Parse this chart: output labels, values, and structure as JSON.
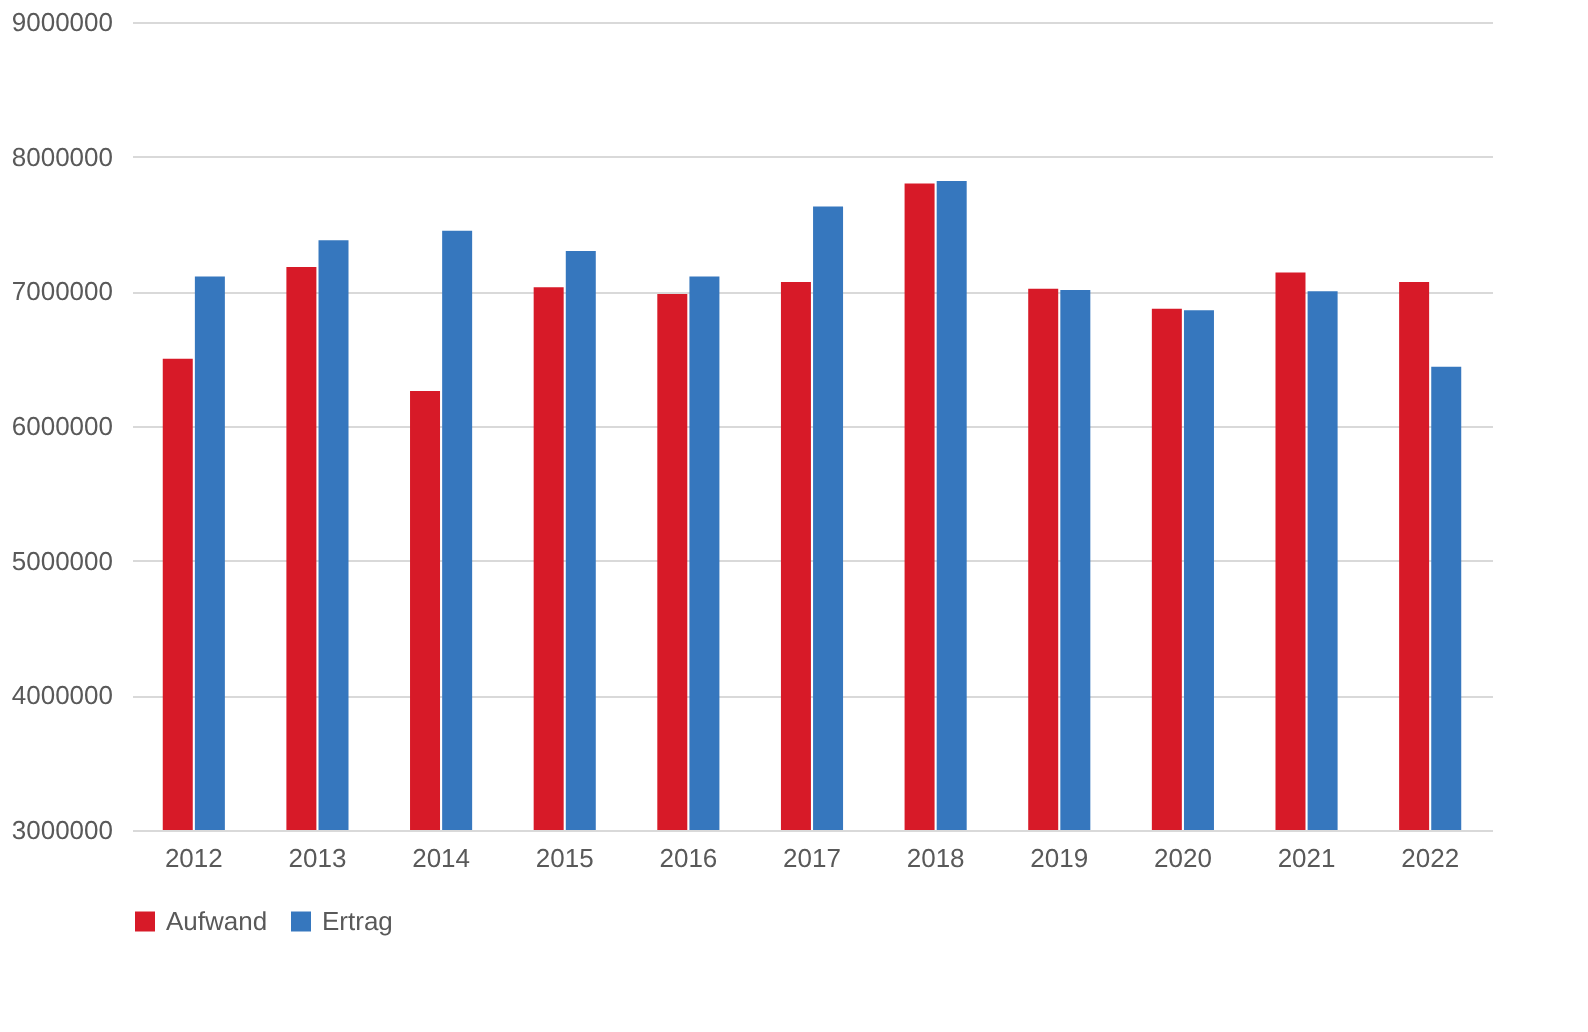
{
  "chart_data": {
    "type": "bar",
    "categories": [
      "2012",
      "2013",
      "2014",
      "2015",
      "2016",
      "2017",
      "2018",
      "2019",
      "2020",
      "2021",
      "2022"
    ],
    "series": [
      {
        "name": "Aufwand",
        "color": "#d71a28",
        "values": [
          6500000,
          7180000,
          6260000,
          7030000,
          6980000,
          7070000,
          7800000,
          7020000,
          6870000,
          7140000,
          7070000
        ]
      },
      {
        "name": "Ertrag",
        "color": "#3677be",
        "values": [
          7110000,
          7380000,
          7450000,
          7300000,
          7110000,
          7630000,
          7820000,
          7010000,
          6860000,
          7000000,
          6440000
        ]
      }
    ],
    "ylim": [
      3000000,
      9000000
    ],
    "yticks": [
      3000000,
      4000000,
      5000000,
      6000000,
      7000000,
      8000000,
      9000000
    ],
    "grid": "y",
    "legend": "bottom"
  }
}
